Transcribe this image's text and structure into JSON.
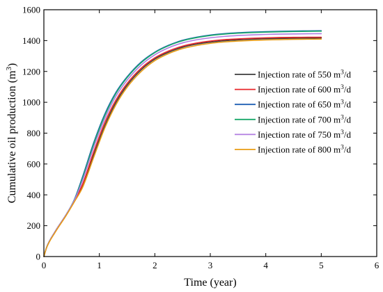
{
  "chart_data": {
    "type": "line",
    "xlabel": "Time (year)",
    "ylabel_base": "Cumulative oil production (m",
    "ylabel_sup": "3",
    "ylabel_end": ")",
    "xlim": [
      0,
      6
    ],
    "ylim": [
      0,
      1600
    ],
    "xticks": [
      0,
      1,
      2,
      3,
      4,
      5,
      6
    ],
    "yticks": [
      0,
      200,
      400,
      600,
      800,
      1000,
      1200,
      1400,
      1600
    ],
    "grid": false,
    "legend_placement": "center-right",
    "series": [
      {
        "name_base": "Injection rate of 550 m",
        "name_sup": "3",
        "name_end": "/d",
        "color": "#3c3c3c",
        "x": [
          0,
          0.05,
          0.2,
          0.4,
          0.55,
          0.7,
          0.9,
          1.1,
          1.3,
          1.5,
          1.75,
          2.0,
          2.25,
          2.5,
          2.75,
          3.0,
          3.25,
          3.5,
          3.75,
          4.0,
          4.25,
          4.5,
          4.75,
          5.0
        ],
        "y": [
          0,
          60,
          160,
          270,
          360,
          460,
          660,
          850,
          1000,
          1110,
          1210,
          1280,
          1325,
          1357,
          1377,
          1390,
          1399,
          1405,
          1409,
          1412,
          1414,
          1415,
          1416,
          1417
        ]
      },
      {
        "name_base": "Injection rate of 600 m",
        "name_sup": "3",
        "name_end": "/d",
        "color": "#e8262a",
        "x": [
          0,
          0.05,
          0.2,
          0.4,
          0.55,
          0.7,
          0.9,
          1.1,
          1.3,
          1.5,
          1.75,
          2.0,
          2.25,
          2.5,
          2.75,
          3.0,
          3.25,
          3.5,
          3.75,
          4.0,
          4.25,
          4.5,
          4.75,
          5.0
        ],
        "y": [
          0,
          60,
          160,
          270,
          362,
          470,
          680,
          870,
          1015,
          1122,
          1220,
          1288,
          1333,
          1364,
          1384,
          1397,
          1406,
          1411,
          1415,
          1418,
          1420,
          1421,
          1422,
          1422
        ]
      },
      {
        "name_base": "Injection rate of 650 m",
        "name_sup": "3",
        "name_end": "/d",
        "color": "#1f5fb4",
        "x": [
          0,
          0.05,
          0.2,
          0.4,
          0.55,
          0.7,
          0.9,
          1.1,
          1.3,
          1.5,
          1.75,
          2.0,
          2.25,
          2.5,
          2.75,
          3.0,
          3.25,
          3.5,
          3.75,
          4.0,
          4.25,
          4.5,
          4.75,
          5.0
        ],
        "y": [
          0,
          60,
          160,
          270,
          370,
          520,
          740,
          925,
          1065,
          1165,
          1260,
          1325,
          1370,
          1402,
          1422,
          1436,
          1445,
          1451,
          1455,
          1458,
          1460,
          1462,
          1463,
          1464
        ]
      },
      {
        "name_base": "Injection rate of 700 m",
        "name_sup": "3",
        "name_end": "/d",
        "color": "#1aa86a",
        "x": [
          0,
          0.05,
          0.2,
          0.4,
          0.55,
          0.7,
          0.9,
          1.1,
          1.3,
          1.5,
          1.75,
          2.0,
          2.25,
          2.5,
          2.75,
          3.0,
          3.25,
          3.5,
          3.75,
          4.0,
          4.25,
          4.5,
          4.75,
          5.0
        ],
        "y": [
          0,
          60,
          160,
          270,
          368,
          510,
          730,
          915,
          1058,
          1160,
          1255,
          1322,
          1367,
          1399,
          1419,
          1433,
          1442,
          1448,
          1452,
          1455,
          1457,
          1459,
          1460,
          1461
        ]
      },
      {
        "name_base": "Injection rate of 750 m",
        "name_sup": "3",
        "name_end": "/d",
        "color": "#b07be0",
        "x": [
          0,
          0.05,
          0.2,
          0.4,
          0.55,
          0.7,
          0.9,
          1.1,
          1.3,
          1.5,
          1.75,
          2.0,
          2.25,
          2.5,
          2.75,
          3.0,
          3.25,
          3.5,
          3.75,
          4.0,
          4.25,
          4.5,
          4.75,
          5.0
        ],
        "y": [
          0,
          60,
          160,
          270,
          365,
          495,
          710,
          895,
          1040,
          1143,
          1240,
          1308,
          1354,
          1385,
          1405,
          1418,
          1427,
          1433,
          1437,
          1440,
          1442,
          1443,
          1444,
          1445
        ]
      },
      {
        "name_base": "Injection rate of 800 m",
        "name_sup": "3",
        "name_end": "/d",
        "color": "#e89b12",
        "x": [
          0,
          0.05,
          0.2,
          0.4,
          0.55,
          0.7,
          0.9,
          1.1,
          1.3,
          1.5,
          1.75,
          2.0,
          2.25,
          2.5,
          2.75,
          3.0,
          3.25,
          3.5,
          3.75,
          4.0,
          4.25,
          4.5,
          4.75,
          5.0
        ],
        "y": [
          0,
          58,
          155,
          265,
          355,
          450,
          645,
          835,
          985,
          1097,
          1198,
          1270,
          1316,
          1348,
          1368,
          1382,
          1391,
          1397,
          1401,
          1404,
          1406,
          1408,
          1409,
          1410
        ]
      }
    ]
  }
}
